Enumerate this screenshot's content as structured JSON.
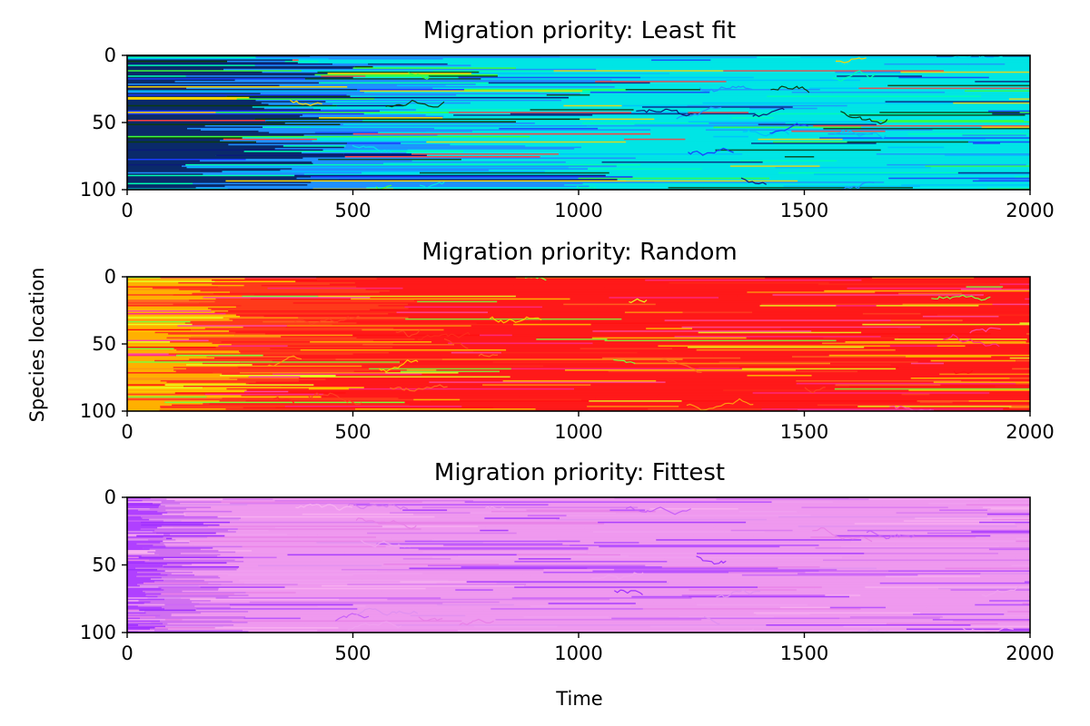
{
  "figure": {
    "ylabel": "Species location",
    "xlabel": "Time"
  },
  "chart_data": [
    {
      "type": "heatmap",
      "title": "Migration priority: Least fit",
      "xlim": [
        0,
        2000
      ],
      "ylim": [
        100,
        0
      ],
      "y_inverted": true,
      "xticks": [
        "0",
        "500",
        "1000",
        "1500",
        "2000"
      ],
      "yticks": [
        "0",
        "50",
        "100"
      ],
      "x_tick_values": [
        0,
        500,
        1000,
        1500,
        2000
      ],
      "y_tick_values": [
        0,
        50,
        100
      ],
      "colormap_note": "hsv",
      "dominant_color_early": "#0a2a6a",
      "dominant_color_mid": "#1e90ff",
      "dominant_color_late": "#00e5e5",
      "band_colors": [
        "#0a1a7a",
        "#0c3c10",
        "#1a3cff",
        "#1e90ff",
        "#00bfff",
        "#00e5e5",
        "#00ffb0",
        "#3cff3c",
        "#ffd700",
        "#ff4040"
      ],
      "transition_times": [
        350,
        650
      ]
    },
    {
      "type": "heatmap",
      "title": "Migration priority: Random",
      "xlim": [
        0,
        2000
      ],
      "ylim": [
        100,
        0
      ],
      "y_inverted": true,
      "xticks": [
        "0",
        "500",
        "1000",
        "1500",
        "2000"
      ],
      "yticks": [
        "0",
        "50",
        "100"
      ],
      "x_tick_values": [
        0,
        500,
        1000,
        1500,
        2000
      ],
      "y_tick_values": [
        0,
        50,
        100
      ],
      "colormap_note": "hsv",
      "dominant_color_early": "#ffb000",
      "dominant_color_mid": "#ff3a1a",
      "dominant_color_late": "#ff1a1a",
      "band_colors": [
        "#ff1010",
        "#ff2a1a",
        "#ff4020",
        "#ff6a20",
        "#ff9a10",
        "#ffc800",
        "#e8ff20",
        "#7cff3c",
        "#ff2a8a",
        "#ff4aa0"
      ],
      "transition_times": [
        180,
        360
      ]
    },
    {
      "type": "heatmap",
      "title": "Migration priority: Fittest",
      "xlim": [
        0,
        2000
      ],
      "ylim": [
        100,
        0
      ],
      "y_inverted": true,
      "xticks": [
        "0",
        "500",
        "1000",
        "1500",
        "2000"
      ],
      "yticks": [
        "0",
        "50",
        "100"
      ],
      "x_tick_values": [
        0,
        500,
        1000,
        1500,
        2000
      ],
      "y_tick_values": [
        0,
        50,
        100
      ],
      "colormap_note": "hsv",
      "dominant_color_early": "#b040ff",
      "dominant_color_mid": "#d070f0",
      "dominant_color_late": "#ee99ee",
      "band_colors": [
        "#e090f0",
        "#f0a0f0",
        "#d878f0",
        "#c860f8",
        "#b048ff",
        "#a030ff",
        "#f8b0f0",
        "#e880e8"
      ],
      "transition_times": [
        60,
        150
      ]
    }
  ]
}
